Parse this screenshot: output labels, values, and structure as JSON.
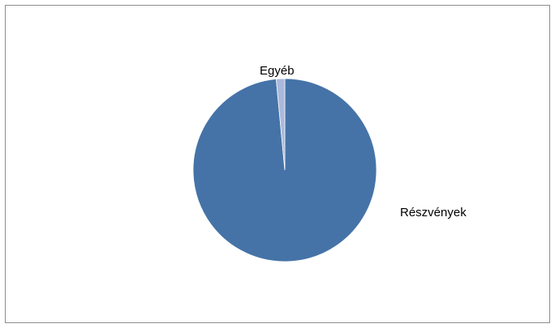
{
  "chart_data": {
    "type": "pie",
    "title": "",
    "categories": [
      "Részvények",
      "Egyéb"
    ],
    "values": [
      98.5,
      1.5
    ],
    "colors": [
      "#4573a7",
      "#aab9db"
    ],
    "slice_order": "clockwise-from-top",
    "legend": "none",
    "labels": "outside"
  }
}
